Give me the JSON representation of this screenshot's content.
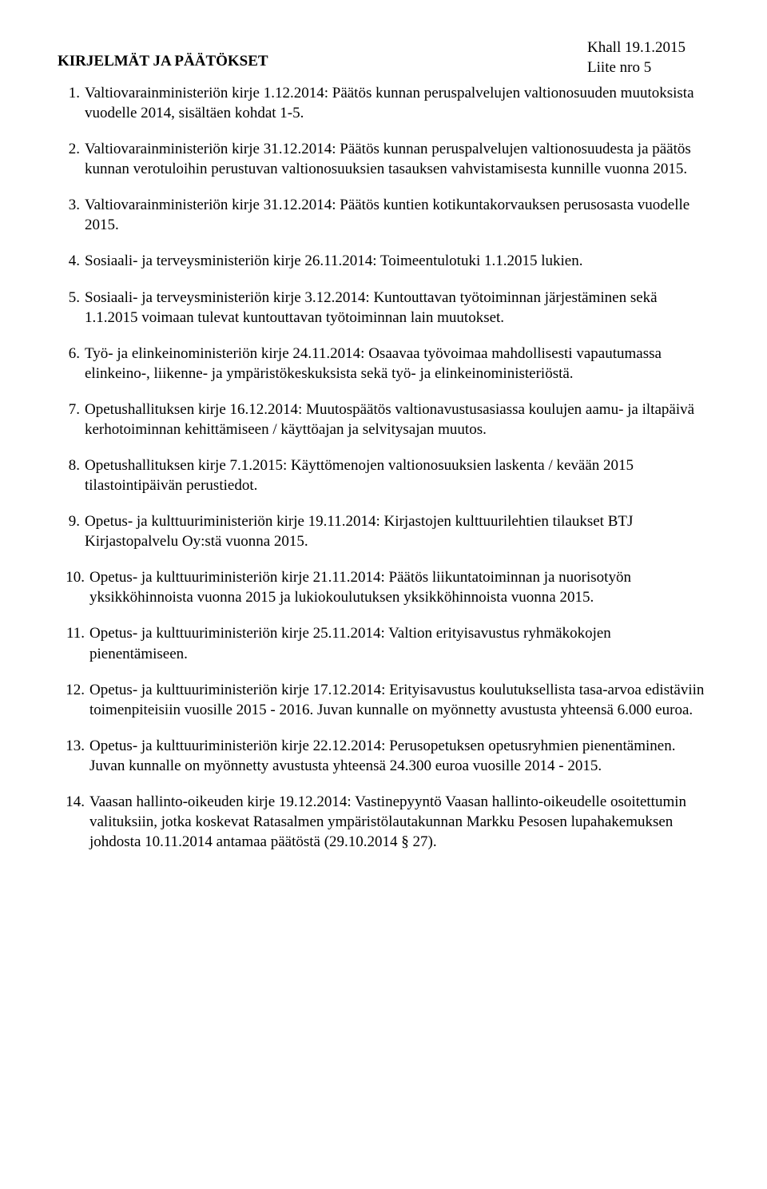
{
  "header": {
    "line1": "Khall 19.1.2015",
    "line2": "Liite nro 5"
  },
  "title": "KIRJELMÄT JA PÄÄTÖKSET",
  "items": [
    {
      "n": "1.",
      "t": "Valtiovarainministeriön kirje 1.12.2014: Päätös kunnan peruspalvelujen valtionosuuden muutoksista vuodelle 2014, sisältäen kohdat 1-5."
    },
    {
      "n": "2.",
      "t": "Valtiovarainministeriön kirje 31.12.2014: Päätös kunnan peruspalvelujen valtionosuudesta ja päätös kunnan verotuloihin perustuvan valtionosuuksien tasauksen vahvistamisesta kunnille vuonna 2015."
    },
    {
      "n": "3.",
      "t": "Valtiovarainministeriön kirje 31.12.2014: Päätös kuntien kotikuntakorvauksen perusosasta vuodelle 2015."
    },
    {
      "n": "4.",
      "t": "Sosiaali- ja terveysministeriön kirje 26.11.2014: Toimeentulotuki 1.1.2015 lukien."
    },
    {
      "n": "5.",
      "t": "Sosiaali- ja terveysministeriön kirje 3.12.2014: Kuntouttavan työtoiminnan järjestäminen sekä 1.1.2015 voimaan tulevat kuntouttavan työtoiminnan lain muutokset."
    },
    {
      "n": "6.",
      "t": "Työ- ja elinkeinoministeriön kirje 24.11.2014: Osaavaa työvoimaa mahdollisesti vapautumassa elinkeino-, liikenne- ja ympäristökeskuksista sekä työ- ja elinkeinoministeriöstä."
    },
    {
      "n": "7.",
      "t": "Opetushallituksen kirje 16.12.2014: Muutospäätös valtionavustusasiassa koulujen aamu- ja iltapäivä kerhotoiminnan kehittämiseen / käyttöajan ja selvitysajan muutos."
    },
    {
      "n": "8.",
      "t": "Opetushallituksen kirje 7.1.2015: Käyttömenojen valtionosuuksien laskenta / kevään 2015 tilastointipäivän perustiedot."
    },
    {
      "n": "9.",
      "t": "Opetus- ja kulttuuriministeriön kirje 19.11.2014: Kirjastojen kulttuurilehtien tilaukset BTJ Kirjastopalvelu Oy:stä vuonna 2015."
    },
    {
      "n": "10.",
      "t": "Opetus- ja kulttuuriministeriön kirje 21.11.2014: Päätös liikuntatoiminnan ja nuorisotyön yksikköhinnoista vuonna 2015 ja lukiokoulutuksen yksikköhinnoista vuonna 2015."
    },
    {
      "n": "11.",
      "t": "Opetus- ja kulttuuriministeriön kirje 25.11.2014: Valtion erityisavustus ryhmäkokojen pienentämiseen."
    },
    {
      "n": "12.",
      "t": "Opetus- ja kulttuuriministeriön kirje 17.12.2014: Erityisavustus koulutuksellista tasa-arvoa edistäviin toimenpiteisiin vuosille 2015 - 2016. Juvan kunnalle on myönnetty avustusta yhteensä 6.000 euroa."
    },
    {
      "n": "13.",
      "t": "Opetus- ja kulttuuriministeriön kirje 22.12.2014: Perusopetuksen opetusryhmien pienentäminen. Juvan kunnalle on myönnetty avustusta yhteensä 24.300 euroa vuosille 2014 - 2015."
    },
    {
      "n": "14.",
      "t": "Vaasan hallinto-oikeuden kirje 19.12.2014: Vastinepyyntö Vaasan hallinto-oikeudelle osoitettumin valituksiin, jotka koskevat Ratasalmen ympäristölautakunnan Markku Pesosen lupahakemuksen johdosta 10.11.2014 antamaa päätöstä (29.10.2014 § 27)."
    }
  ],
  "style": {
    "font_family": "Times New Roman",
    "font_size_pt": 14,
    "text_color": "#000000",
    "background_color": "#ffffff"
  }
}
